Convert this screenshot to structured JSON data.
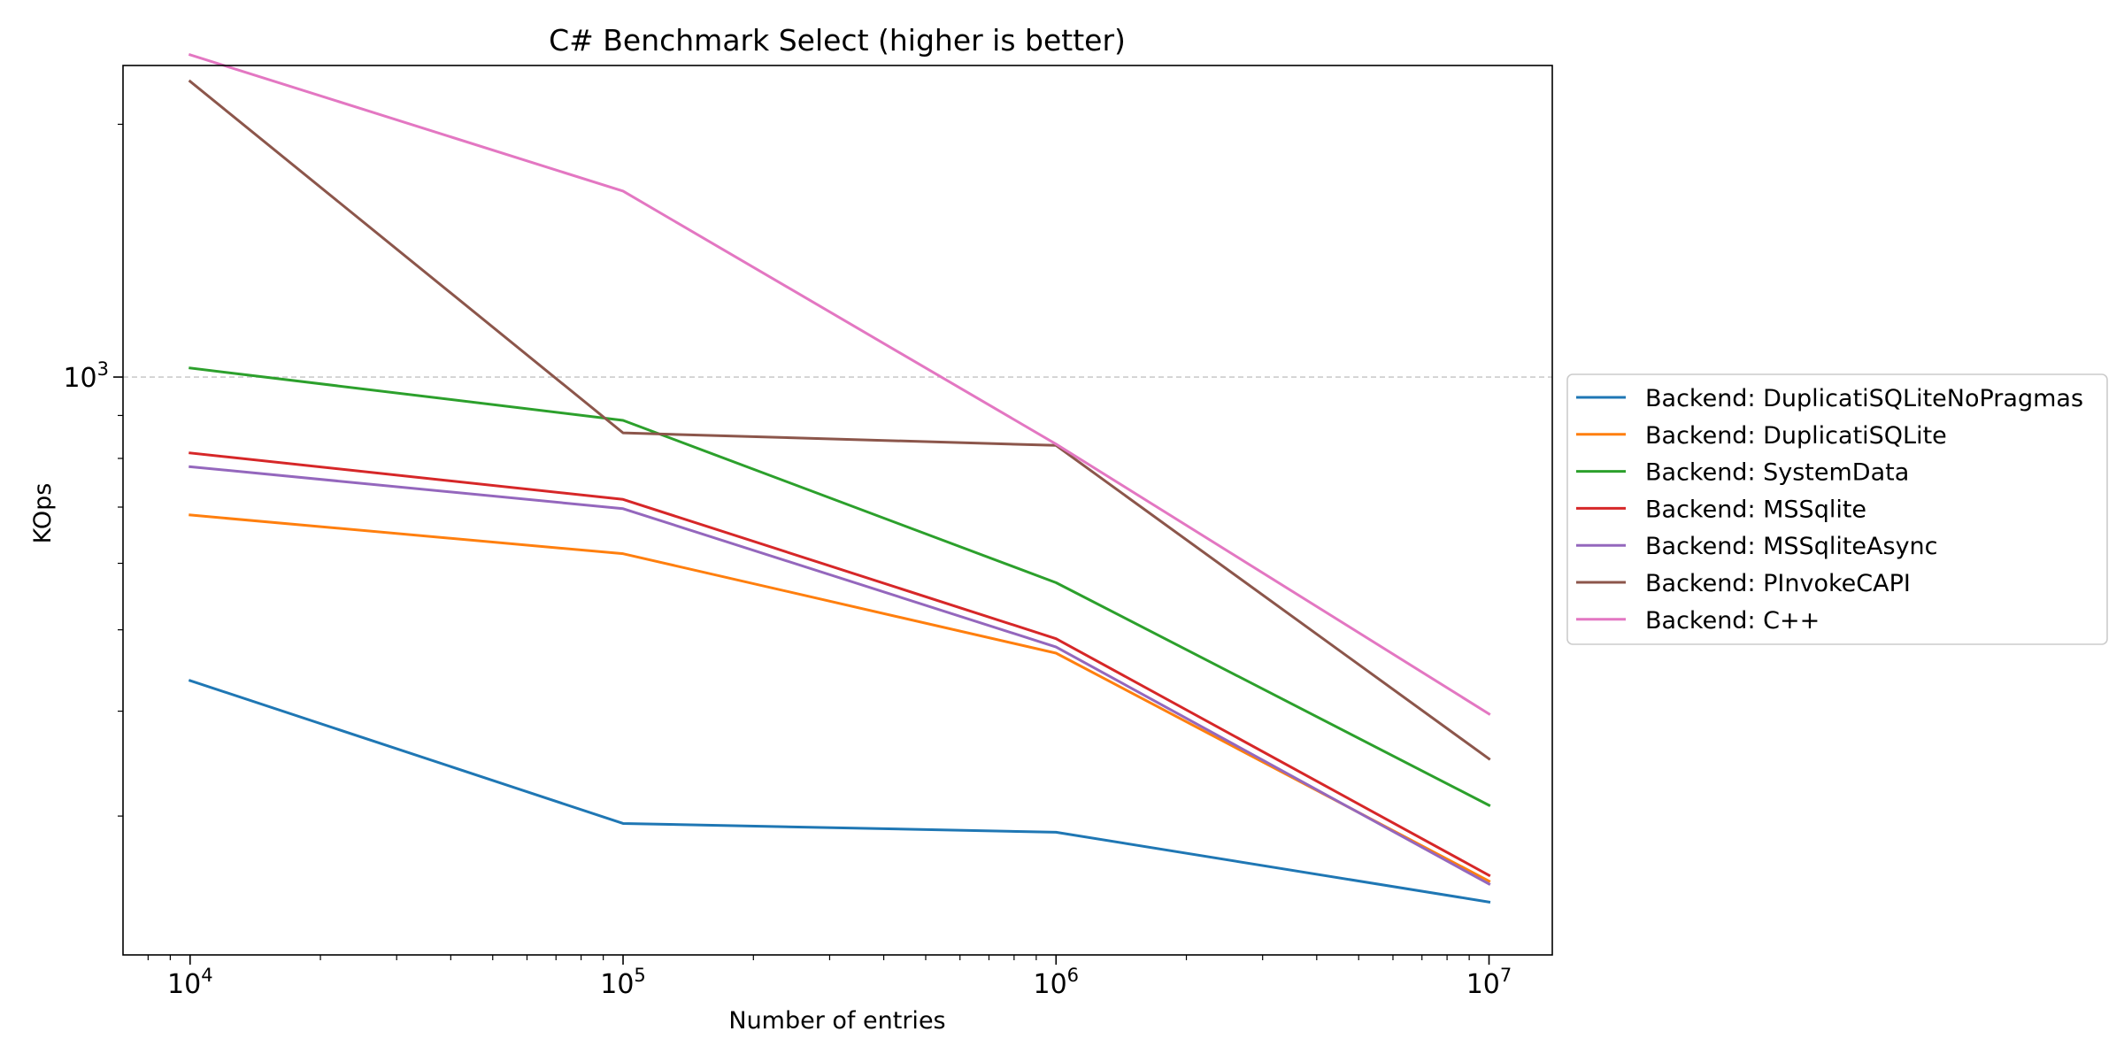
{
  "chart_data": {
    "type": "line",
    "title": "C# Benchmark Select (higher is better)",
    "xlabel": "Number of entries",
    "ylabel": "KOps",
    "x_scale": "log",
    "y_scale": "log",
    "x": [
      10000,
      100000,
      1000000,
      10000000
    ],
    "xlim": [
      7000,
      14000000
    ],
    "ylim": [
      205,
      2350
    ],
    "x_ticks": [
      {
        "value": 10000,
        "base": "10",
        "exp": "4"
      },
      {
        "value": 100000,
        "base": "10",
        "exp": "5"
      },
      {
        "value": 1000000,
        "base": "10",
        "exp": "6"
      },
      {
        "value": 10000000,
        "base": "10",
        "exp": "7"
      }
    ],
    "y_ticks": [
      {
        "value": 1000,
        "base": "10",
        "exp": "3"
      }
    ],
    "grid": "y-major dashed",
    "legend_position": "outside-right",
    "series": [
      {
        "name": "Backend: DuplicatiSQLiteNoPragmas",
        "color": "#1f77b4",
        "values": [
          435,
          294,
          287,
          237
        ]
      },
      {
        "name": "Backend: DuplicatiSQLite",
        "color": "#ff7f0e",
        "values": [
          685,
          616,
          469,
          251
        ]
      },
      {
        "name": "Backend: SystemData",
        "color": "#2ca02c",
        "values": [
          1025,
          888,
          569,
          309
        ]
      },
      {
        "name": "Backend: MSSqlite",
        "color": "#d62728",
        "values": [
          812,
          715,
          488,
          255
        ]
      },
      {
        "name": "Backend: MSSqliteAsync",
        "color": "#9467bd",
        "values": [
          782,
          697,
          477,
          249
        ]
      },
      {
        "name": "Backend: PInvokeCAPI",
        "color": "#8c564b",
        "values": [
          2250,
          858,
          829,
          351
        ]
      },
      {
        "name": "Backend: C++",
        "color": "#e377c2",
        "values": [
          2420,
          1665,
          832,
          397
        ]
      }
    ]
  }
}
